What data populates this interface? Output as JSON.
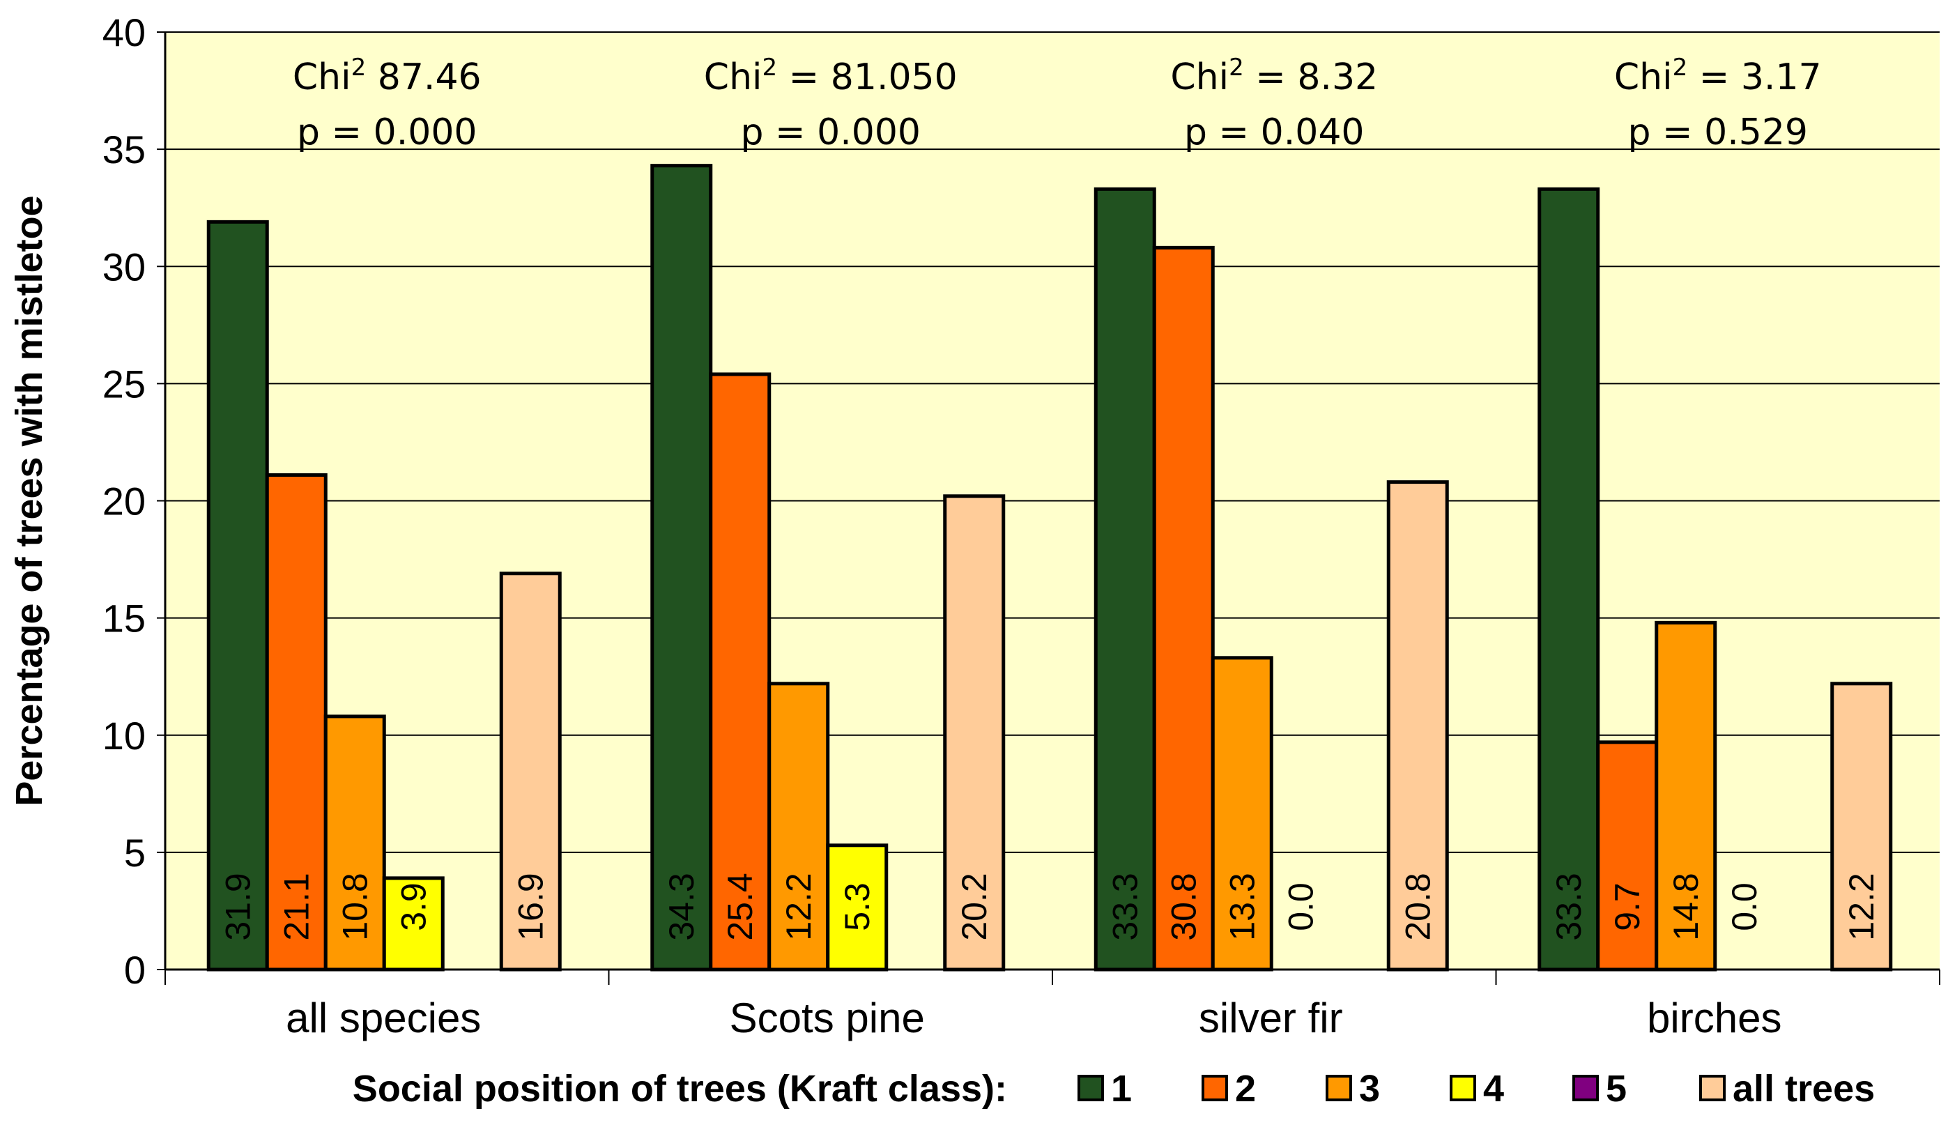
{
  "chart_data": {
    "type": "bar",
    "ylabel": "Percentage of trees with mistletoe",
    "ylim": [
      0,
      40
    ],
    "ytick_step": 5,
    "grid": true,
    "categories": [
      "all species",
      "Scots pine",
      "silver fir",
      "birches"
    ],
    "series": [
      {
        "name": "1",
        "color": "#215220",
        "values": [
          31.9,
          34.3,
          33.3,
          33.3
        ],
        "labels": [
          "31.9",
          "34.3",
          "33.3",
          "33.3"
        ]
      },
      {
        "name": "2",
        "color": "#FF6600",
        "values": [
          21.1,
          25.4,
          30.8,
          9.7
        ],
        "labels": [
          "21.1",
          "25.4",
          "30.8",
          "9.7"
        ]
      },
      {
        "name": "3",
        "color": "#FF9900",
        "values": [
          10.8,
          12.2,
          13.3,
          14.8
        ],
        "labels": [
          "10.8",
          "12.2",
          "13.3",
          "14.8"
        ]
      },
      {
        "name": "4",
        "color": "#FFFF00",
        "values": [
          3.9,
          5.3,
          0.0,
          0.0
        ],
        "labels": [
          "3.9",
          "5.3",
          "0.0",
          "0.0"
        ]
      },
      {
        "name": "5",
        "color": "#800080",
        "values": [
          null,
          null,
          null,
          null
        ],
        "labels": [
          "",
          "",
          "",
          ""
        ]
      },
      {
        "name": "all trees",
        "color": "#FFCC99",
        "values": [
          16.9,
          20.2,
          20.8,
          12.2
        ],
        "labels": [
          "16.9",
          "20.2",
          "20.8",
          "12.2"
        ]
      }
    ],
    "annotations": [
      {
        "chi_prefix": "Chi",
        "sup": "2",
        "chi_value": " 87.46",
        "p": "p = 0.000"
      },
      {
        "chi_prefix": "Chi",
        "sup": "2",
        "chi_value": " = 81.050",
        "p": "p = 0.000"
      },
      {
        "chi_prefix": "Chi",
        "sup": "2",
        "chi_value": " = 8.32",
        "p": "p = 0.040"
      },
      {
        "chi_prefix": "Chi",
        "sup": "2",
        "chi_value": " = 3.17",
        "p": "p = 0.529"
      }
    ],
    "legend_title": "Social position of trees (Kraft class):",
    "legend_position": "bottom",
    "plot_background": "#FFFFCC"
  }
}
